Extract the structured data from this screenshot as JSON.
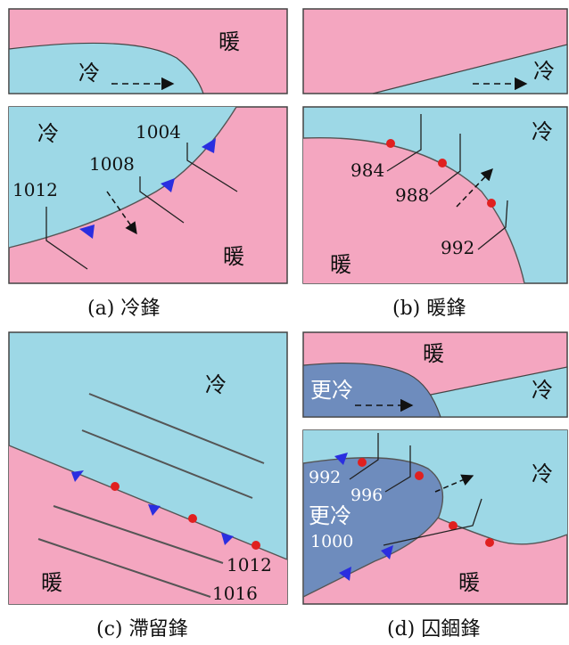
{
  "colors": {
    "cold": "#9dd8e6",
    "warm": "#f4a6c0",
    "colder": "#6e8cbd",
    "cold_front_marker": "#2a2ee0",
    "warm_front_marker": "#e02020",
    "line": "#333333"
  },
  "panel_a": {
    "top_cold": "冷",
    "top_warm": "暖",
    "cold": "冷",
    "warm": "暖",
    "isobars": [
      "1012",
      "1008",
      "1004"
    ],
    "caption": "(a) 冷鋒"
  },
  "panel_b": {
    "top_cold": "冷",
    "cold": "冷",
    "warm": "暖",
    "isobars": [
      "984",
      "988",
      "992"
    ],
    "caption": "(b) 暖鋒"
  },
  "panel_c": {
    "cold": "冷",
    "warm": "暖",
    "isobars": [
      "1012",
      "1016"
    ],
    "caption": "(c) 滯留鋒"
  },
  "panel_d": {
    "top_warm": "暖",
    "top_colder": "更冷",
    "top_cold": "冷",
    "colder": "更冷",
    "cold": "冷",
    "warm": "暖",
    "isobars": [
      "992",
      "996",
      "1000"
    ],
    "caption": "(d) 囚錮鋒"
  }
}
